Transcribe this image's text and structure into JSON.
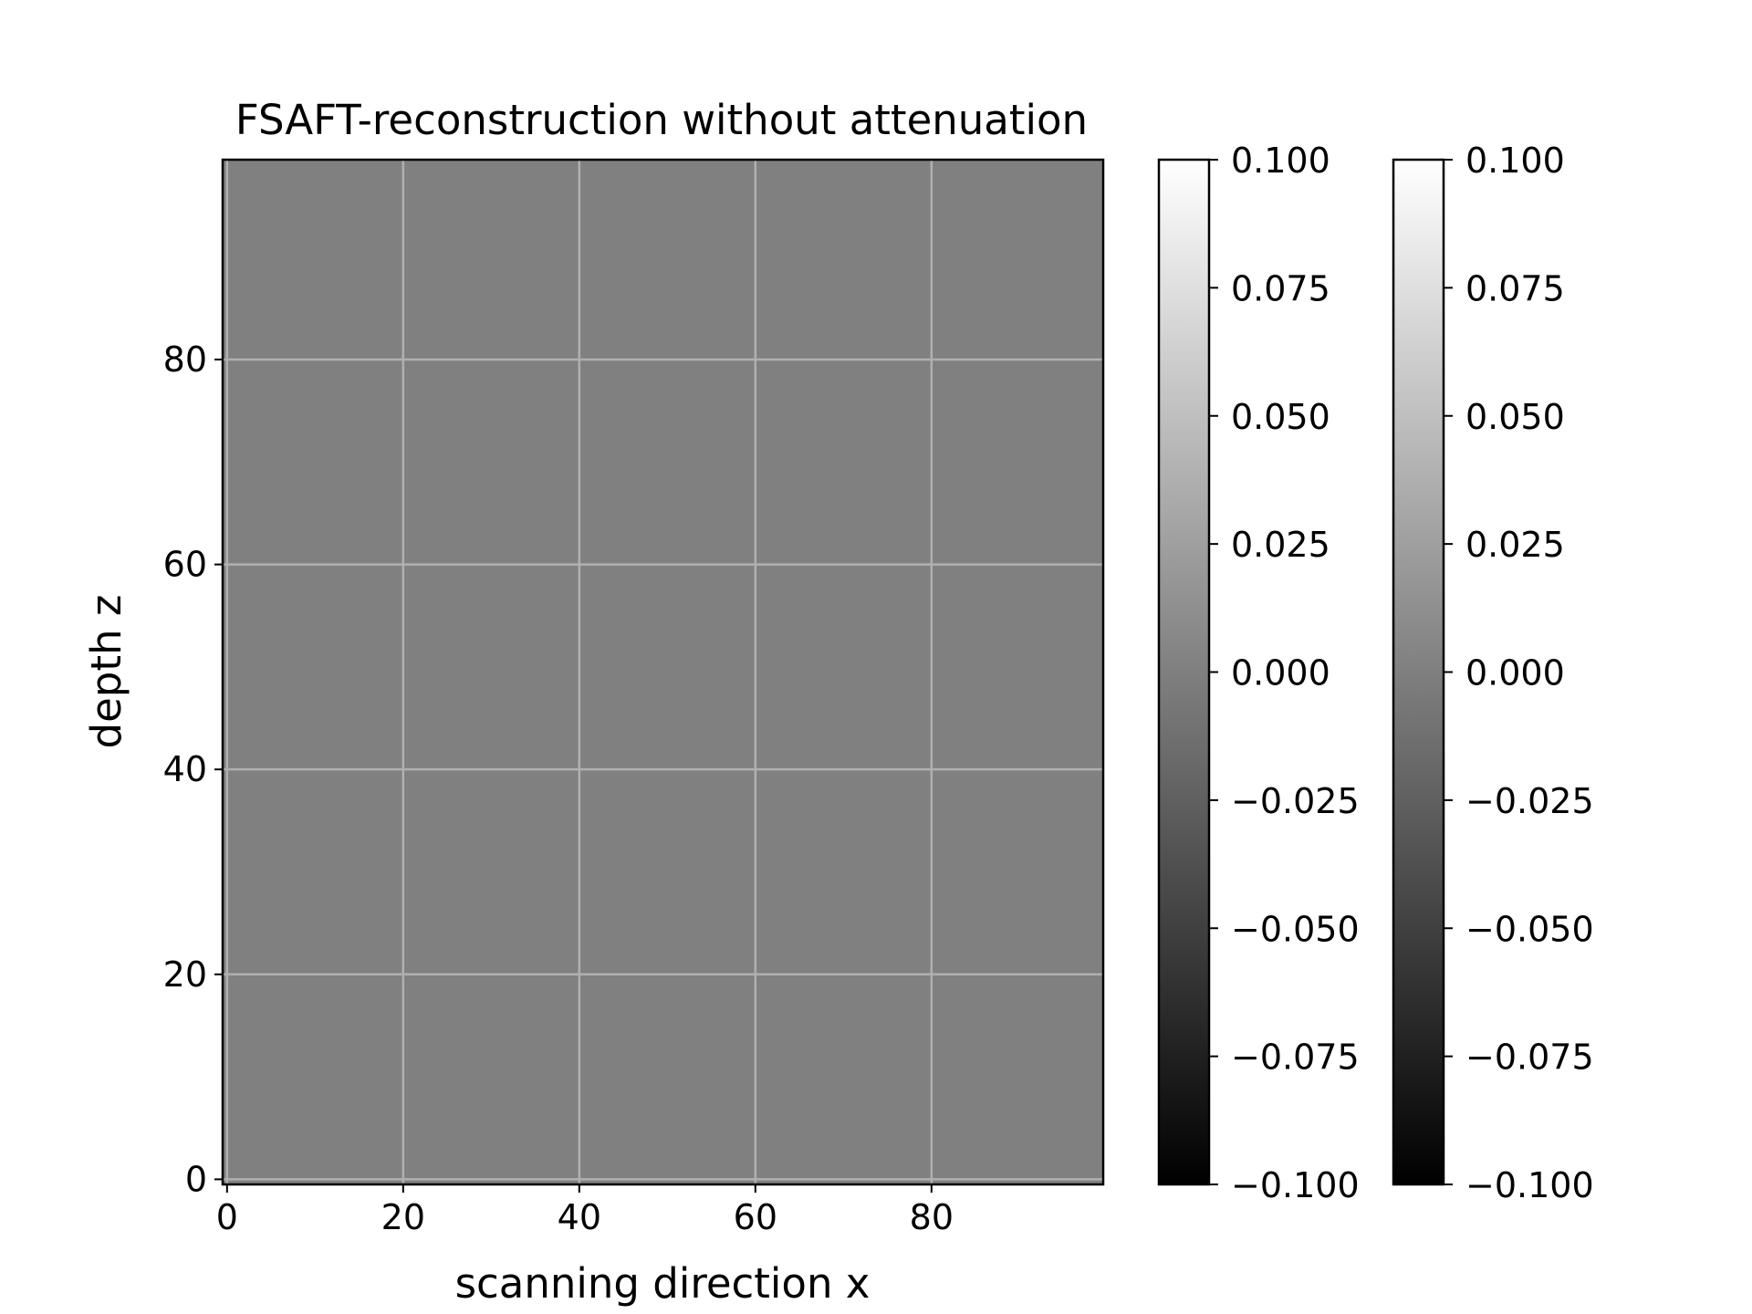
{
  "chart_data": {
    "type": "heatmap",
    "title": "FSAFT-reconstruction without attenuation",
    "xlabel": "scanning direction x",
    "ylabel": "depth z",
    "xlim": [
      -0.5,
      99.5
    ],
    "ylim": [
      -0.5,
      99.5
    ],
    "x_ticks": [
      0,
      20,
      40,
      60,
      80
    ],
    "x_tick_labels": [
      "0",
      "20",
      "40",
      "60",
      "80"
    ],
    "y_ticks": [
      0,
      20,
      40,
      60,
      80
    ],
    "y_tick_labels": [
      "0",
      "20",
      "40",
      "60",
      "80"
    ],
    "grid": true,
    "colormap": "gray",
    "image_value": 0.0,
    "image_color": "#808080",
    "grid_color": "#b0b0b0",
    "colorbars": [
      {
        "vmin": -0.1,
        "vmax": 0.1,
        "ticks": [
          -0.1,
          -0.075,
          -0.05,
          -0.025,
          0.0,
          0.025,
          0.05,
          0.075,
          0.1
        ],
        "tick_labels": [
          "−0.100",
          "−0.075",
          "−0.050",
          "−0.025",
          "0.000",
          "0.025",
          "0.050",
          "0.075",
          "0.100"
        ]
      },
      {
        "vmin": -0.1,
        "vmax": 0.1,
        "ticks": [
          -0.1,
          -0.075,
          -0.05,
          -0.025,
          0.0,
          0.025,
          0.05,
          0.075,
          0.1
        ],
        "tick_labels": [
          "−0.100",
          "−0.075",
          "−0.050",
          "−0.025",
          "0.000",
          "0.025",
          "0.050",
          "0.075",
          "0.100"
        ]
      }
    ]
  }
}
